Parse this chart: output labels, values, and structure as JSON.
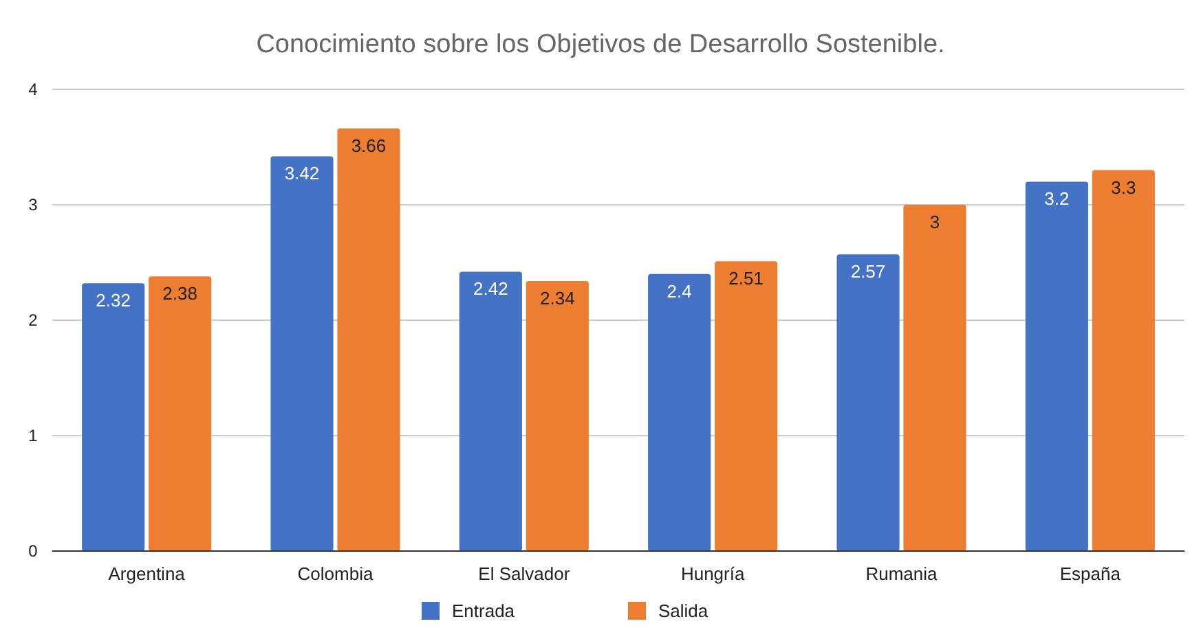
{
  "chart_data": {
    "type": "bar",
    "title": "Conocimiento sobre los Objetivos de Desarrollo Sostenible.",
    "categories": [
      "Argentina",
      "Colombia",
      "El Salvador",
      "Hungría",
      "Rumania",
      "España"
    ],
    "series": [
      {
        "name": "Entrada",
        "color": "#4472c4",
        "values": [
          2.32,
          3.42,
          2.42,
          2.4,
          2.57,
          3.2
        ]
      },
      {
        "name": "Salida",
        "color": "#ed7d31",
        "values": [
          2.38,
          3.66,
          2.34,
          2.51,
          3,
          3.3
        ]
      }
    ],
    "ylim": [
      0,
      4
    ],
    "yticks": [
      0,
      1,
      2,
      3,
      4
    ],
    "grid": "y",
    "legend": "bottom",
    "data_labels": true
  }
}
